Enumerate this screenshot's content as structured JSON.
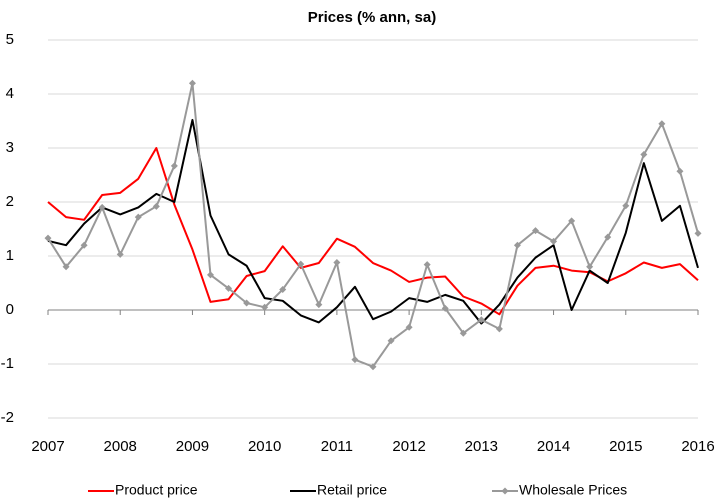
{
  "chart_data": {
    "type": "line",
    "title": "Prices (% ann, sa)",
    "x": [
      2007,
      2007.25,
      2007.5,
      2007.75,
      2008,
      2008.25,
      2008.5,
      2008.75,
      2009,
      2009.25,
      2009.5,
      2009.75,
      2010,
      2010.25,
      2010.5,
      2010.75,
      2011,
      2011.25,
      2011.5,
      2011.75,
      2012,
      2012.25,
      2012.5,
      2012.75,
      2013,
      2013.25,
      2013.5,
      2013.75,
      2014,
      2014.25,
      2014.5,
      2014.75,
      2015,
      2015.25,
      2015.5,
      2015.75,
      2016
    ],
    "series": [
      {
        "name": "Product price",
        "color": "#ff0000",
        "values": [
          2.0,
          1.72,
          1.67,
          2.13,
          2.17,
          2.43,
          3.0,
          1.95,
          1.12,
          0.15,
          0.2,
          0.63,
          0.72,
          1.18,
          0.78,
          0.87,
          1.32,
          1.17,
          0.87,
          0.73,
          0.52,
          0.6,
          0.62,
          0.25,
          0.12,
          -0.08,
          0.45,
          0.78,
          0.82,
          0.73,
          0.7,
          0.53,
          0.68,
          0.88,
          0.78,
          0.85,
          0.55
        ]
      },
      {
        "name": "Retail price",
        "color": "#000000",
        "values": [
          1.28,
          1.2,
          1.6,
          1.9,
          1.77,
          1.9,
          2.15,
          2.0,
          3.52,
          1.75,
          1.03,
          0.82,
          0.22,
          0.17,
          -0.1,
          -0.23,
          0.05,
          0.43,
          -0.17,
          -0.03,
          0.22,
          0.15,
          0.28,
          0.17,
          -0.25,
          0.1,
          0.6,
          0.97,
          1.2,
          0.0,
          0.73,
          0.5,
          1.43,
          2.72,
          1.65,
          1.93,
          0.78
        ]
      },
      {
        "name": "Wholesale Prices",
        "color": "#999999",
        "marker": "diamond",
        "values": [
          1.33,
          0.8,
          1.2,
          1.9,
          1.03,
          1.72,
          1.92,
          2.67,
          4.2,
          0.65,
          0.4,
          0.13,
          0.05,
          0.38,
          0.85,
          0.1,
          0.88,
          -0.92,
          -1.05,
          -0.57,
          -0.32,
          0.84,
          0.03,
          -0.43,
          -0.18,
          -0.35,
          1.2,
          1.47,
          1.27,
          1.65,
          0.8,
          1.35,
          1.93,
          2.88,
          3.45,
          2.57,
          1.42
        ]
      }
    ],
    "xlim": [
      2007,
      2016
    ],
    "xticks": [
      2007,
      2008,
      2009,
      2010,
      2011,
      2012,
      2013,
      2014,
      2015,
      2016
    ],
    "ylim": [
      -2,
      5
    ],
    "yticks": [
      -2,
      -1,
      0,
      1,
      2,
      3,
      4,
      5
    ],
    "grid": true,
    "legend": "bottom"
  }
}
